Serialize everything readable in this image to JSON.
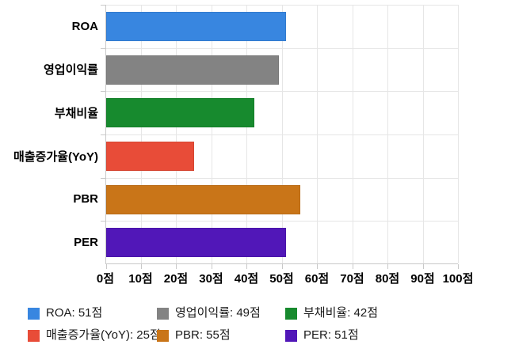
{
  "chart_data": {
    "type": "bar",
    "orientation": "horizontal",
    "title": "",
    "xlabel": "",
    "ylabel": "",
    "categories": [
      "ROA",
      "영업이익률",
      "부채비율",
      "매출증가율(YoY)",
      "PBR",
      "PER"
    ],
    "values": [
      51,
      49,
      42,
      25,
      55,
      51
    ],
    "value_unit": "점",
    "bar_colors": [
      "#3886E0",
      "#838383",
      "#178A2E",
      "#E84C38",
      "#C97518",
      "#5117B8"
    ],
    "xlim": [
      0,
      100
    ],
    "x_tick_step": 10,
    "x_ticks": [
      "0점",
      "10점",
      "20점",
      "30점",
      "40점",
      "50점",
      "60점",
      "70점",
      "80점",
      "90점",
      "100점"
    ],
    "grid": true,
    "legend_position": "bottom",
    "legend": [
      {
        "label": "ROA: 51점",
        "color": "#3886E0"
      },
      {
        "label": "영업이익률: 49점",
        "color": "#838383"
      },
      {
        "label": "부채비율: 42점",
        "color": "#178A2E"
      },
      {
        "label": "매출증가율(YoY): 25점",
        "color": "#E84C38"
      },
      {
        "label": "PBR: 55점",
        "color": "#C97518"
      },
      {
        "label": "PER: 51점",
        "color": "#5117B8"
      }
    ],
    "colors": {
      "gridline": "#e6e6e6",
      "axis_line": "#c9c9c9",
      "axis_text": "#000000",
      "legend_text": "#1a1a1a",
      "background": "#ffffff"
    }
  }
}
